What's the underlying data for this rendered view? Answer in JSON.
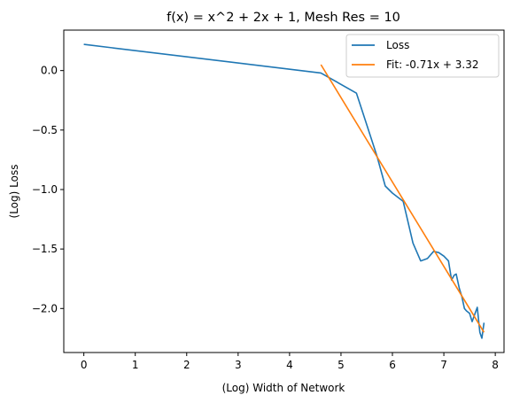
{
  "chart_data": {
    "type": "line",
    "title": "f(x) = x^2 + 2x + 1, Mesh Res = 10",
    "xlabel": "(Log) Width of Network",
    "ylabel": "(Log) Loss",
    "xlim": [
      -0.39,
      8.17
    ],
    "ylim": [
      -2.37,
      0.34
    ],
    "x_ticks": [
      0,
      1,
      2,
      3,
      4,
      5,
      6,
      7,
      8
    ],
    "x_tick_labels": [
      "0",
      "1",
      "2",
      "3",
      "4",
      "5",
      "6",
      "7",
      "8"
    ],
    "y_ticks": [
      -2.0,
      -1.5,
      -1.0,
      -0.5,
      0.0
    ],
    "y_tick_labels": [
      "−2.0",
      "−1.5",
      "−1.0",
      "−0.5",
      "0.0"
    ],
    "grid": false,
    "legend_position": "top-right",
    "series": [
      {
        "name": "Loss",
        "color": "#1f77b4",
        "points": [
          [
            0.0,
            0.22
          ],
          [
            4.61,
            -0.02
          ],
          [
            5.3,
            -0.19
          ],
          [
            5.52,
            -0.48
          ],
          [
            5.7,
            -0.72
          ],
          [
            5.86,
            -0.97
          ],
          [
            6.0,
            -1.03
          ],
          [
            6.21,
            -1.1
          ],
          [
            6.4,
            -1.45
          ],
          [
            6.55,
            -1.6
          ],
          [
            6.68,
            -1.58
          ],
          [
            6.8,
            -1.52
          ],
          [
            6.9,
            -1.53
          ],
          [
            7.0,
            -1.56
          ],
          [
            7.09,
            -1.6
          ],
          [
            7.15,
            -1.76
          ],
          [
            7.2,
            -1.72
          ],
          [
            7.24,
            -1.71
          ],
          [
            7.3,
            -1.83
          ],
          [
            7.35,
            -1.9
          ],
          [
            7.4,
            -2.0
          ],
          [
            7.44,
            -2.02
          ],
          [
            7.5,
            -2.04
          ],
          [
            7.55,
            -2.11
          ],
          [
            7.6,
            -2.05
          ],
          [
            7.65,
            -1.99
          ],
          [
            7.7,
            -2.2
          ],
          [
            7.74,
            -2.25
          ],
          [
            7.78,
            -2.12
          ]
        ]
      },
      {
        "name": "Fit: -0.71x + 3.32",
        "color": "#ff7f0e",
        "points": [
          [
            4.61,
            0.05
          ],
          [
            7.78,
            -2.2
          ]
        ]
      }
    ]
  }
}
